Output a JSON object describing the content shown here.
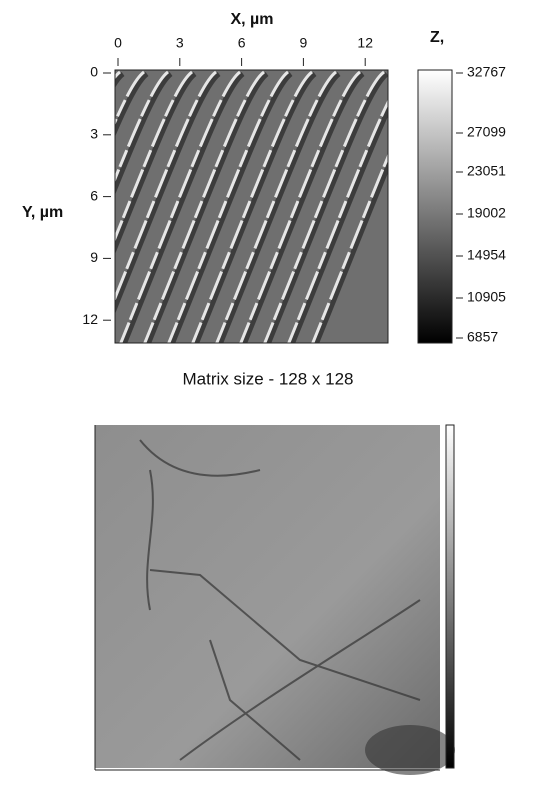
{
  "top_image": {
    "x_axis_label": "X, µm",
    "y_axis_label": "Y, µm",
    "x_ticks": [
      0,
      3,
      6,
      9,
      12
    ],
    "y_ticks": [
      0,
      3,
      6,
      9,
      12
    ],
    "colorbar_label": "Z,",
    "colorbar_ticks": [
      32767,
      27099,
      23051,
      19002,
      14954,
      10905,
      6857
    ]
  },
  "caption": "Matrix size - 128 x 128"
}
